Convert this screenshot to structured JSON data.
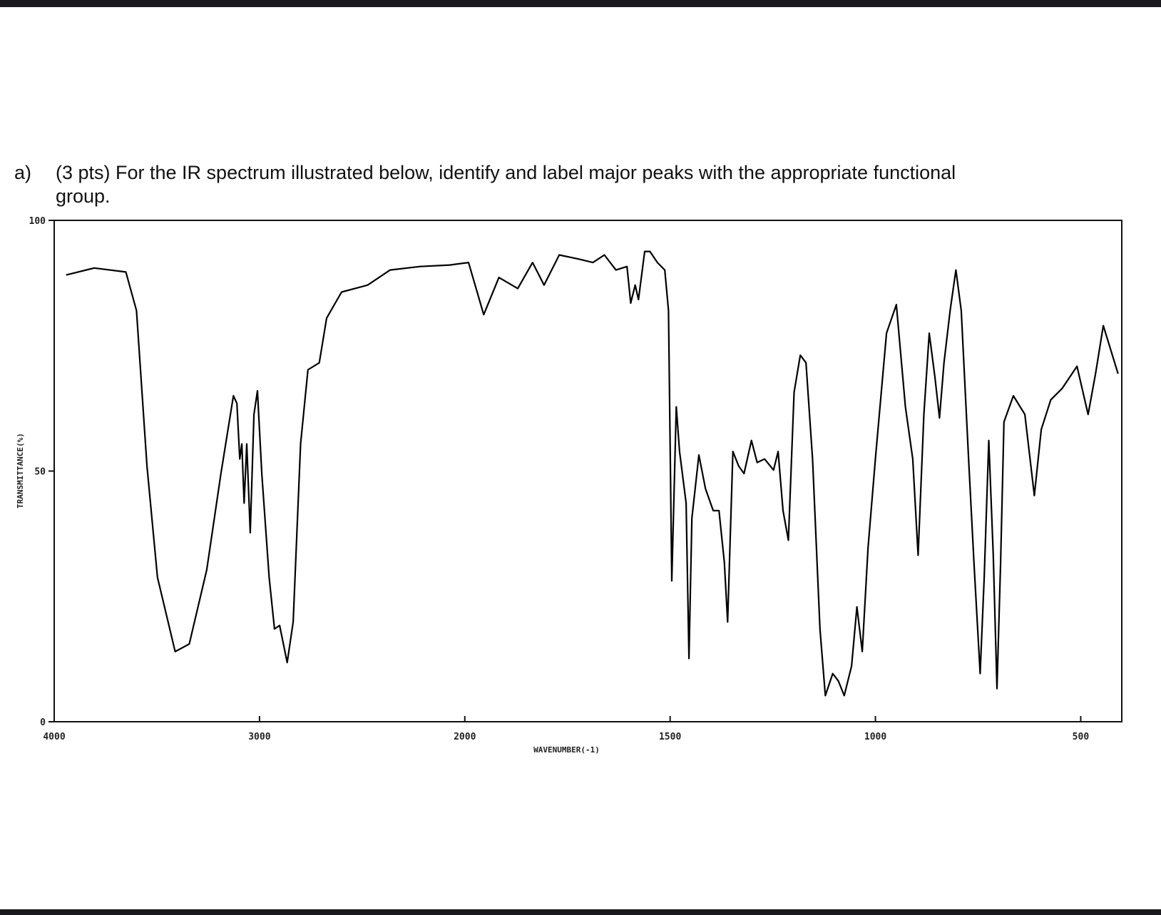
{
  "question_label": "a)",
  "chart_data": {
    "type": "line",
    "title": "(3 pts) For the IR spectrum illustrated below, identify and label major peaks with the appropriate functional group.",
    "x_label": "WAVENUMBER(-1)",
    "y_label": "TRANSMITTANCE(%)",
    "color": "#000000",
    "xlim": [
      4000,
      400
    ],
    "ylim": [
      0,
      100
    ],
    "xticks": [
      4000,
      3000,
      2000,
      1500,
      1000,
      500
    ],
    "yticks": [
      0,
      50,
      100
    ],
    "x": [
      3942,
      3805,
      3651,
      3599,
      3548,
      3497,
      3411,
      3342,
      3257,
      3188,
      3127,
      3110,
      3096,
      3086,
      3075,
      3062,
      3045,
      3027,
      3010,
      2989,
      2953,
      2927,
      2902,
      2865,
      2836,
      2800,
      2764,
      2709,
      2673,
      2600,
      2473,
      2364,
      2218,
      2073,
      1991,
      1954,
      1917,
      1871,
      1835,
      1807,
      1770,
      1724,
      1688,
      1660,
      1632,
      1605,
      1596,
      1585,
      1577,
      1562,
      1549,
      1531,
      1513,
      1504,
      1496,
      1485,
      1477,
      1461,
      1454,
      1447,
      1430,
      1414,
      1395,
      1381,
      1368,
      1360,
      1347,
      1333,
      1320,
      1302,
      1288,
      1270,
      1248,
      1237,
      1225,
      1212,
      1198,
      1183,
      1169,
      1153,
      1135,
      1122,
      1104,
      1090,
      1076,
      1058,
      1045,
      1032,
      1018,
      1000,
      973,
      949,
      927,
      909,
      896,
      882,
      869,
      855,
      844,
      833,
      818,
      804,
      791,
      773,
      760,
      745,
      735,
      724,
      713,
      704,
      695,
      687,
      664,
      636,
      613,
      596,
      573,
      545,
      509,
      482,
      464,
      445,
      409
    ],
    "values": [
      89.1,
      90.5,
      89.7,
      82,
      51,
      28.8,
      14,
      15.5,
      30.3,
      49.5,
      65,
      63.5,
      52.4,
      55.4,
      43.6,
      55.4,
      37.7,
      61.3,
      66,
      49.5,
      28.8,
      18.5,
      19.2,
      11.8,
      19.9,
      55.4,
      70.2,
      71.6,
      80.5,
      85.7,
      87.1,
      90.1,
      90.8,
      91.1,
      91.6,
      81.2,
      88.6,
      86.4,
      91.6,
      87.1,
      93.1,
      92.3,
      91.6,
      93.1,
      90.1,
      90.8,
      83.5,
      87.1,
      84.2,
      93.8,
      93.8,
      91.6,
      90.1,
      82,
      28.1,
      62.8,
      53.9,
      43.6,
      12.6,
      40.6,
      53.2,
      46.5,
      42.1,
      42.1,
      31.8,
      19.9,
      53.9,
      51,
      49.5,
      56.1,
      51.7,
      52.4,
      50.2,
      53.9,
      42.1,
      36.2,
      65.7,
      73.1,
      71.6,
      52.4,
      18.5,
      5.2,
      9.6,
      8.1,
      5.2,
      11.1,
      22.9,
      14,
      34.7,
      52.4,
      77.5,
      83.2,
      62.8,
      52.4,
      33.2,
      61.3,
      77.5,
      68.7,
      60.6,
      71.6,
      82,
      90.1,
      82,
      52.4,
      31.8,
      9.6,
      28.8,
      56.1,
      33.2,
      6.6,
      31.8,
      59.8,
      65,
      61.3,
      45.1,
      58.3,
      64.2,
      66.5,
      70.9,
      61.3,
      69.4,
      79,
      69.4
    ]
  }
}
